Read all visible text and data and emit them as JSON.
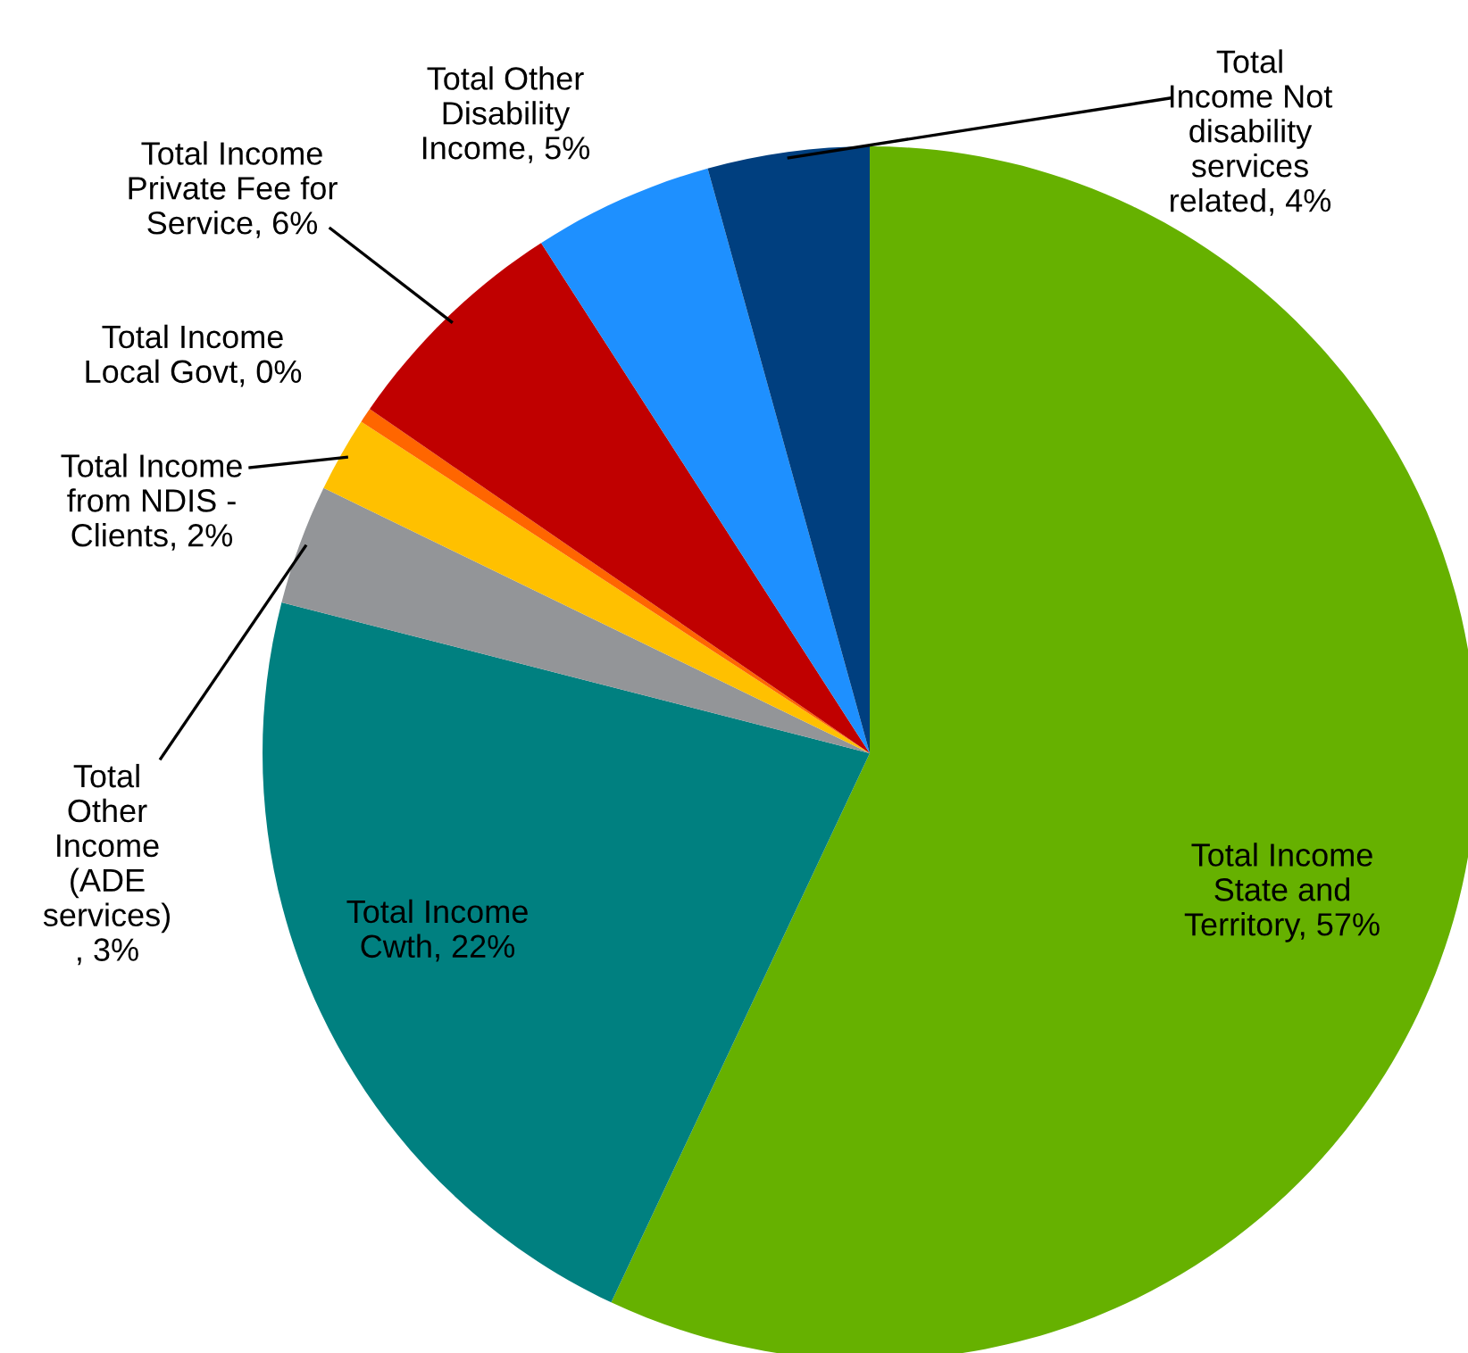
{
  "chart_data": {
    "type": "pie",
    "categories": [
      "Total Income\nState and\nTerritory",
      "Total Income\nCwth",
      "Total\nOther\nIncome\n(ADE\nservices)",
      "Total Income\nfrom NDIS -\nClients",
      "Total Income\nLocal Govt",
      "Total Income\nPrivate Fee for\nService",
      "Total Other\nDisability\nIncome",
      "Total\nIncome Not\ndisability\nservices\nrelated"
    ],
    "values": [
      57,
      22,
      3.2,
      2,
      0.4,
      6.3,
      4.8,
      4.3
    ],
    "value_labels": [
      "57%",
      "22%",
      ", 3%",
      "2%",
      "0%",
      "6%",
      "5%",
      "4%"
    ],
    "colors": [
      "#66b100",
      "#008080",
      "#939598",
      "#ffc000",
      "#ff6600",
      "#c00000",
      "#1e90ff",
      "#003f7f"
    ],
    "legend": false
  }
}
